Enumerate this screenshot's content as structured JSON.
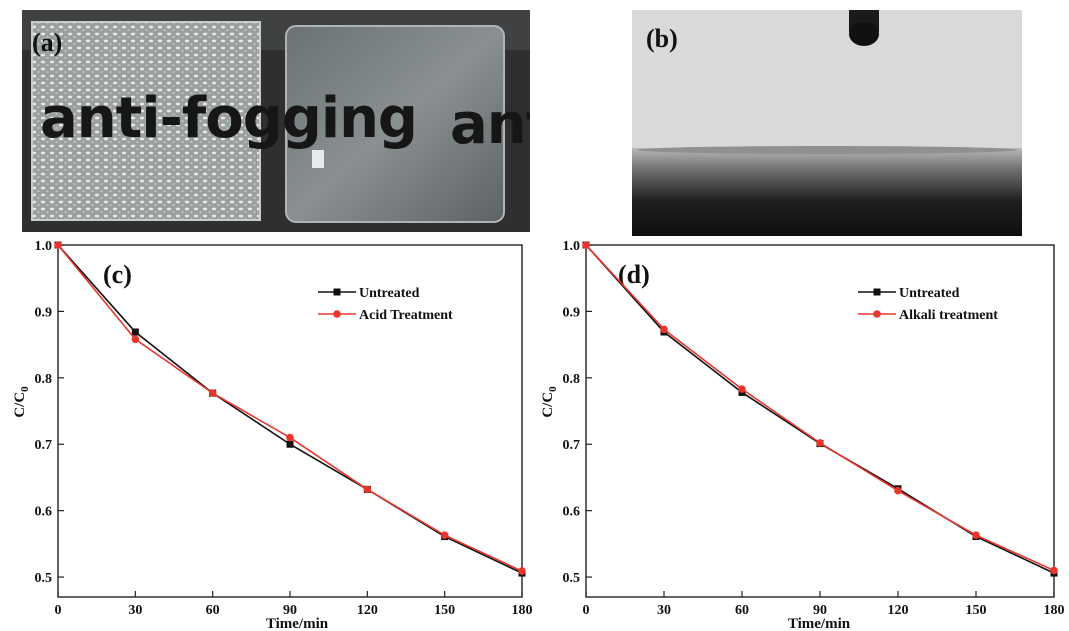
{
  "panels": {
    "a": {
      "label": "(a)",
      "overlay_text_left": "anti-fogging",
      "overlay_text_right": "ant"
    },
    "b": {
      "label": "(b)"
    }
  },
  "colors": {
    "untreated": "#111111",
    "treated": "#e8362d"
  },
  "chart_data": [
    {
      "type": "line",
      "panel_label": "(c)",
      "xlabel": "Time/min",
      "ylabel": "C/C",
      "ylabel_subscript": "0",
      "xlim": [
        0,
        180
      ],
      "ylim": [
        0.47,
        1.0
      ],
      "xticks": [
        0,
        30,
        60,
        90,
        120,
        150,
        180
      ],
      "yticks": [
        0.5,
        0.6,
        0.7,
        0.8,
        0.9,
        1.0
      ],
      "xtick_labels": [
        "0",
        "30",
        "60",
        "90",
        "120",
        "150",
        "180"
      ],
      "ytick_labels": [
        "0.5",
        "0.6",
        "0.7",
        "0.8",
        "0.9",
        "1.0"
      ],
      "legend_position": "top-right",
      "grid": false,
      "x": [
        0,
        30,
        60,
        90,
        120,
        150,
        180
      ],
      "series": [
        {
          "name": "Untreated",
          "marker": "square",
          "color": "#111111",
          "values": [
            1.0,
            0.869,
            0.777,
            0.7,
            0.632,
            0.561,
            0.506
          ]
        },
        {
          "name": "Acid Treatment",
          "marker": "circle",
          "color": "#e8362d",
          "values": [
            1.0,
            0.858,
            0.777,
            0.71,
            0.632,
            0.563,
            0.509
          ]
        }
      ]
    },
    {
      "type": "line",
      "panel_label": "(d)",
      "xlabel": "Time/min",
      "ylabel": "C/C",
      "ylabel_subscript": "0",
      "xlim": [
        0,
        180
      ],
      "ylim": [
        0.47,
        1.0
      ],
      "xticks": [
        0,
        30,
        60,
        90,
        120,
        150,
        180
      ],
      "yticks": [
        0.5,
        0.6,
        0.7,
        0.8,
        0.9,
        1.0
      ],
      "xtick_labels": [
        "0",
        "30",
        "60",
        "90",
        "120",
        "150",
        "180"
      ],
      "ytick_labels": [
        "0.5",
        "0.6",
        "0.7",
        "0.8",
        "0.9",
        "1.0"
      ],
      "legend_position": "top-right",
      "grid": false,
      "x": [
        0,
        30,
        60,
        90,
        120,
        150,
        180
      ],
      "series": [
        {
          "name": "Untreated",
          "marker": "square",
          "color": "#111111",
          "values": [
            1.0,
            0.869,
            0.778,
            0.701,
            0.633,
            0.561,
            0.506
          ]
        },
        {
          "name": "Alkali treatment",
          "marker": "circle",
          "color": "#e8362d",
          "values": [
            1.0,
            0.873,
            0.783,
            0.702,
            0.63,
            0.563,
            0.51
          ]
        }
      ]
    }
  ]
}
